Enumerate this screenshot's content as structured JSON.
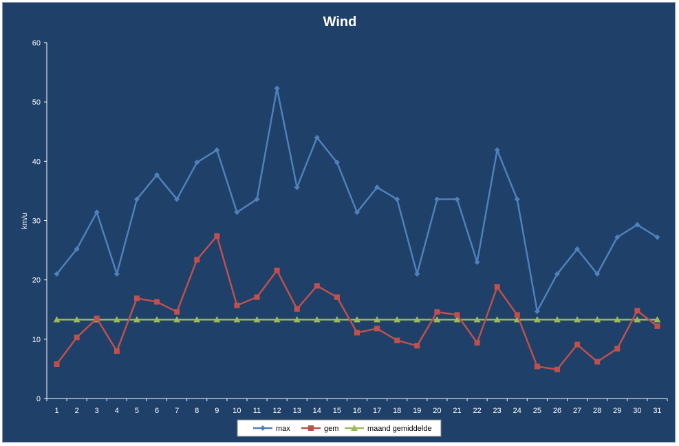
{
  "chart_data": {
    "type": "line",
    "title": "Wind",
    "xlabel": "",
    "ylabel": "km/u",
    "ylim": [
      0,
      60
    ],
    "yticks": [
      0,
      10,
      20,
      30,
      40,
      50,
      60
    ],
    "categories": [
      "1",
      "2",
      "3",
      "4",
      "5",
      "6",
      "7",
      "8",
      "9",
      "10",
      "11",
      "12",
      "13",
      "14",
      "15",
      "16",
      "17",
      "18",
      "19",
      "20",
      "21",
      "22",
      "23",
      "24",
      "25",
      "26",
      "27",
      "28",
      "29",
      "30",
      "31"
    ],
    "grid": false,
    "legend_position": "bottom",
    "series": [
      {
        "name": "max",
        "color": "#4f81bd",
        "marker": "diamond",
        "values": [
          21,
          25.2,
          31.4,
          21,
          33.6,
          37.7,
          33.6,
          39.8,
          41.9,
          31.4,
          33.6,
          52.3,
          35.6,
          44,
          39.8,
          31.4,
          35.6,
          33.6,
          21,
          33.6,
          33.6,
          23,
          41.9,
          33.6,
          14.7,
          21,
          25.2,
          21,
          27.2,
          29.3,
          27.2
        ]
      },
      {
        "name": "gem",
        "color": "#c0504d",
        "marker": "square",
        "values": [
          5.8,
          10.3,
          13.5,
          8,
          16.9,
          16.3,
          14.6,
          23.4,
          27.4,
          15.7,
          17.1,
          21.6,
          15.1,
          19,
          17.1,
          11.1,
          11.8,
          9.8,
          8.9,
          14.6,
          14.1,
          9.4,
          18.8,
          14.1,
          5.4,
          4.9,
          9.1,
          6.2,
          8.4,
          14.8,
          12.2
        ]
      },
      {
        "name": "maand gemiddelde",
        "color": "#9bbb59",
        "marker": "triangle",
        "values": [
          13.3,
          13.3,
          13.3,
          13.3,
          13.3,
          13.3,
          13.3,
          13.3,
          13.3,
          13.3,
          13.3,
          13.3,
          13.3,
          13.3,
          13.3,
          13.3,
          13.3,
          13.3,
          13.3,
          13.3,
          13.3,
          13.3,
          13.3,
          13.3,
          13.3,
          13.3,
          13.3,
          13.3,
          13.3,
          13.3,
          13.3
        ]
      }
    ],
    "colors": {
      "background": "#1f4068",
      "axis": "#ffffff",
      "text": "#ffffff",
      "legend_background": "#ffffff"
    }
  }
}
